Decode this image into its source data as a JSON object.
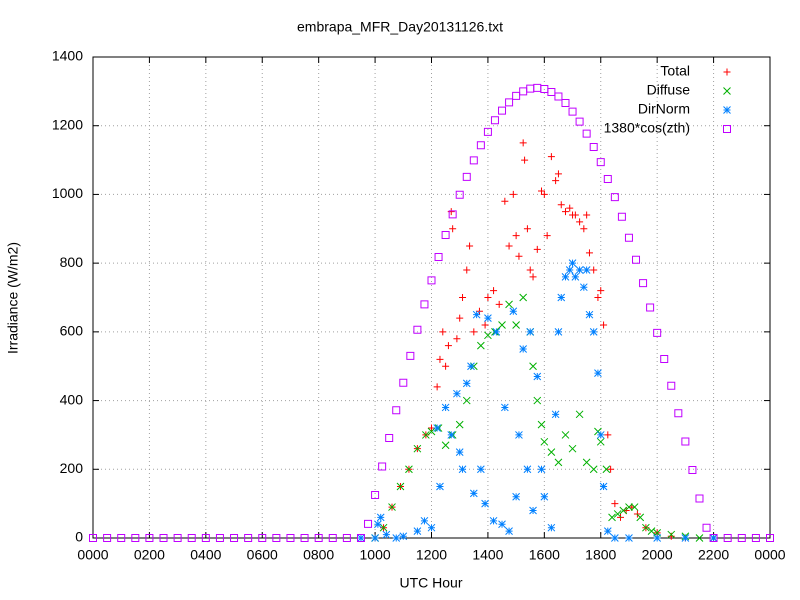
{
  "chart_data": {
    "type": "scatter",
    "title": "embrapa_MFR_Day20131126.txt",
    "x_label": "UTC Hour",
    "y_label": "Irradiance (W/m2)",
    "xlim": [
      0,
      24
    ],
    "xticks": [
      {
        "value": 0,
        "label": "0000"
      },
      {
        "value": 2,
        "label": "0200"
      },
      {
        "value": 4,
        "label": "0400"
      },
      {
        "value": 6,
        "label": "0600"
      },
      {
        "value": 8,
        "label": "0800"
      },
      {
        "value": 10,
        "label": "1000"
      },
      {
        "value": 12,
        "label": "1200"
      },
      {
        "value": 14,
        "label": "1400"
      },
      {
        "value": 16,
        "label": "1600"
      },
      {
        "value": 18,
        "label": "1800"
      },
      {
        "value": 20,
        "label": "2000"
      },
      {
        "value": 22,
        "label": "2200"
      },
      {
        "value": 24,
        "label": "0000"
      }
    ],
    "ylim": [
      0,
      1400
    ],
    "yticks": [
      0,
      200,
      400,
      600,
      800,
      1000,
      1200,
      1400
    ],
    "grid": true,
    "legend": "top-right",
    "series": [
      {
        "name": "Total",
        "color": "#ff0000",
        "marker": "plus",
        "x": [
          10,
          10.3,
          10.6,
          10.9,
          11.2,
          11.5,
          11.8,
          12.0,
          12.2,
          12.3,
          12.4,
          12.5,
          12.6,
          12.7,
          12.75,
          12.9,
          13.0,
          13.1,
          13.25,
          13.35,
          13.5,
          13.7,
          13.9,
          14.0,
          14.2,
          14.4,
          14.6,
          14.75,
          14.9,
          15.0,
          15.1,
          15.25,
          15.3,
          15.4,
          15.5,
          15.6,
          15.75,
          15.9,
          16.0,
          16.1,
          16.25,
          16.4,
          16.5,
          16.6,
          16.75,
          16.9,
          17.0,
          17.1,
          17.25,
          17.4,
          17.5,
          17.6,
          17.75,
          17.9,
          18.0,
          18.1,
          18.25,
          18.35,
          18.5,
          18.7,
          18.9,
          19.1,
          19.3,
          19.6,
          20,
          20.5,
          21,
          22
        ],
        "values": [
          0,
          30,
          90,
          150,
          200,
          260,
          300,
          320,
          440,
          520,
          600,
          500,
          560,
          950,
          900,
          580,
          640,
          700,
          780,
          850,
          600,
          660,
          620,
          700,
          720,
          680,
          980,
          850,
          1000,
          880,
          820,
          1150,
          1100,
          900,
          780,
          760,
          840,
          1010,
          1000,
          880,
          1110,
          1040,
          1060,
          970,
          950,
          960,
          940,
          940,
          920,
          900,
          940,
          830,
          780,
          700,
          720,
          620,
          300,
          200,
          100,
          60,
          80,
          90,
          70,
          30,
          15,
          5,
          0,
          0
        ]
      },
      {
        "name": "Diffuse",
        "color": "#00b000",
        "marker": "cross",
        "x": [
          10,
          10.3,
          10.6,
          10.9,
          11.2,
          11.5,
          11.8,
          12.0,
          12.25,
          12.5,
          12.75,
          13.0,
          13.25,
          13.5,
          13.75,
          14.0,
          14.25,
          14.5,
          14.75,
          15.0,
          15.25,
          15.5,
          15.6,
          15.75,
          15.9,
          16.0,
          16.25,
          16.5,
          16.75,
          17.0,
          17.25,
          17.5,
          17.75,
          17.9,
          18.0,
          18.2,
          18.4,
          18.6,
          18.8,
          19.0,
          19.2,
          19.4,
          19.6,
          19.8,
          20.0,
          20.5,
          21,
          21.5,
          22
        ],
        "values": [
          0,
          30,
          90,
          150,
          200,
          260,
          300,
          310,
          320,
          270,
          300,
          330,
          400,
          500,
          560,
          590,
          600,
          620,
          680,
          620,
          700,
          600,
          500,
          400,
          330,
          280,
          250,
          220,
          300,
          260,
          360,
          220,
          200,
          310,
          280,
          200,
          60,
          70,
          80,
          90,
          90,
          60,
          30,
          20,
          15,
          10,
          5,
          0,
          0
        ]
      },
      {
        "name": "DirNorm",
        "color": "#0080ff",
        "marker": "star",
        "x": [
          9.5,
          10,
          10.1,
          10.2,
          10.4,
          10.75,
          11,
          11.5,
          11.75,
          12,
          12.2,
          12.3,
          12.5,
          12.7,
          12.9,
          13.0,
          13.1,
          13.25,
          13.4,
          13.5,
          13.6,
          13.75,
          13.9,
          14.0,
          14.2,
          14.3,
          14.5,
          14.6,
          14.75,
          14.9,
          15.0,
          15.1,
          15.25,
          15.4,
          15.5,
          15.6,
          15.75,
          15.9,
          16.0,
          16.25,
          16.4,
          16.5,
          16.6,
          16.75,
          16.9,
          17.0,
          17.1,
          17.25,
          17.4,
          17.5,
          17.6,
          17.75,
          17.9,
          18.0,
          18.1,
          18.25,
          18.5,
          19,
          20,
          21,
          22
        ],
        "values": [
          0,
          0,
          40,
          60,
          10,
          0,
          5,
          20,
          50,
          30,
          320,
          150,
          380,
          300,
          420,
          250,
          200,
          450,
          500,
          130,
          650,
          200,
          100,
          640,
          50,
          600,
          40,
          380,
          20,
          660,
          120,
          300,
          550,
          200,
          600,
          80,
          470,
          200,
          120,
          30,
          360,
          600,
          700,
          760,
          780,
          800,
          760,
          780,
          730,
          780,
          650,
          600,
          480,
          300,
          150,
          20,
          0,
          0,
          0,
          0,
          0
        ]
      },
      {
        "name": "1380*cos(zth)",
        "color": "#c000ff",
        "marker": "square",
        "x": [
          0,
          0.5,
          1,
          1.5,
          2,
          2.5,
          3,
          3.5,
          4,
          4.5,
          5,
          5.5,
          6,
          6.5,
          7,
          7.5,
          8,
          8.5,
          9,
          9.5,
          9.75,
          10,
          10.25,
          10.5,
          10.75,
          11,
          11.25,
          11.5,
          11.75,
          12,
          12.25,
          12.5,
          12.75,
          13,
          13.25,
          13.5,
          13.75,
          14,
          14.25,
          14.5,
          14.75,
          15,
          15.25,
          15.5,
          15.75,
          16,
          16.25,
          16.5,
          16.75,
          17,
          17.25,
          17.5,
          17.75,
          18,
          18.25,
          18.5,
          18.75,
          19,
          19.25,
          19.5,
          19.75,
          20,
          20.25,
          20.5,
          20.75,
          21,
          21.25,
          21.5,
          21.75,
          22,
          22.5,
          23,
          23.5,
          24
        ],
        "values": [
          0,
          0,
          0,
          0,
          0,
          0,
          0,
          0,
          0,
          0,
          0,
          0,
          0,
          0,
          0,
          0,
          0,
          0,
          0,
          0,
          41,
          125,
          208,
          291,
          372,
          452,
          530,
          606,
          680,
          750,
          818,
          882,
          942,
          999,
          1051,
          1099,
          1143,
          1182,
          1216,
          1244,
          1268,
          1287,
          1300,
          1308,
          1310,
          1307,
          1298,
          1285,
          1266,
          1241,
          1212,
          1177,
          1138,
          1094,
          1045,
          992,
          935,
          874,
          810,
          742,
          671,
          597,
          521,
          443,
          363,
          281,
          198,
          115,
          30,
          0,
          0,
          0,
          0,
          0
        ]
      }
    ]
  }
}
